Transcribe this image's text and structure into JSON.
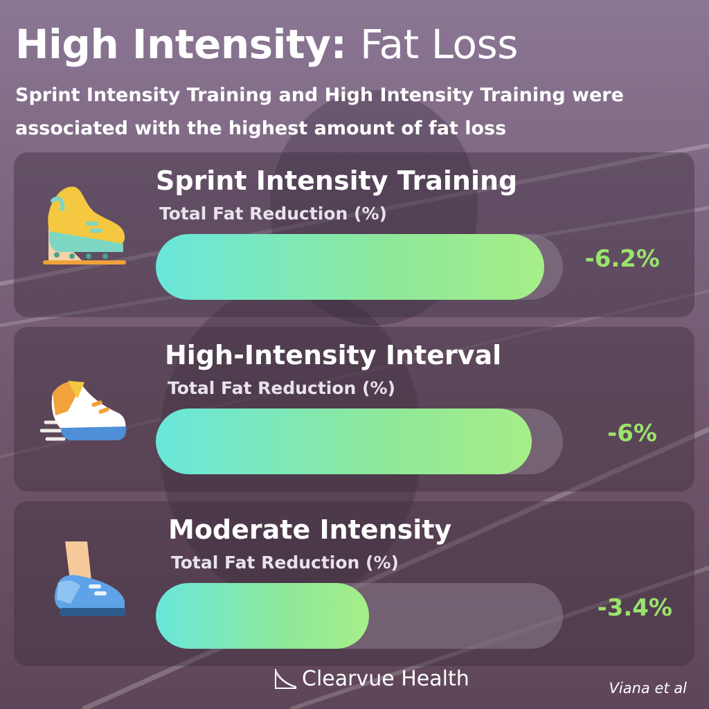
{
  "header": {
    "title_bold": "High Intensity:",
    "title_light": "Fat Loss",
    "subtitle": "Sprint Intensity Training and High Intensity Training were associated with the highest amount of fat loss"
  },
  "chart_data": {
    "type": "bar",
    "orientation": "horizontal",
    "categories": [
      "Sprint Intensity Training",
      "High-Intensity Interval",
      "Moderate Intensity"
    ],
    "series": [
      {
        "name": "Total Fat Reduction (%)",
        "values": [
          -6.2,
          -6,
          -3.4
        ]
      }
    ],
    "value_labels": [
      "-6.2%",
      "-6%",
      "-3.4%"
    ],
    "metric_label": "Total Fat Reduction (%)",
    "xlim": [
      0,
      6.5
    ]
  },
  "cards": [
    {
      "title": "Sprint Intensity Training",
      "metric": "Total Fat Reduction (%)",
      "value_label": "-6.2%",
      "icon": "spike-shoe-on-block-icon"
    },
    {
      "title": "High-Intensity Interval",
      "metric": "Total Fat Reduction (%)",
      "value_label": "-6%",
      "icon": "running-shoe-icon"
    },
    {
      "title": "Moderate Intensity",
      "metric": "Total Fat Reduction (%)",
      "value_label": "-3.4%",
      "icon": "walking-foot-icon"
    }
  ],
  "footer": {
    "brand": "Clearvue Health",
    "source": "Viana et al"
  },
  "colors": {
    "bar_start": "#69e7dc",
    "bar_end": "#a6ee88",
    "value_text": "#9ae46c",
    "card_bg": "rgba(60,45,60,0.42)"
  }
}
